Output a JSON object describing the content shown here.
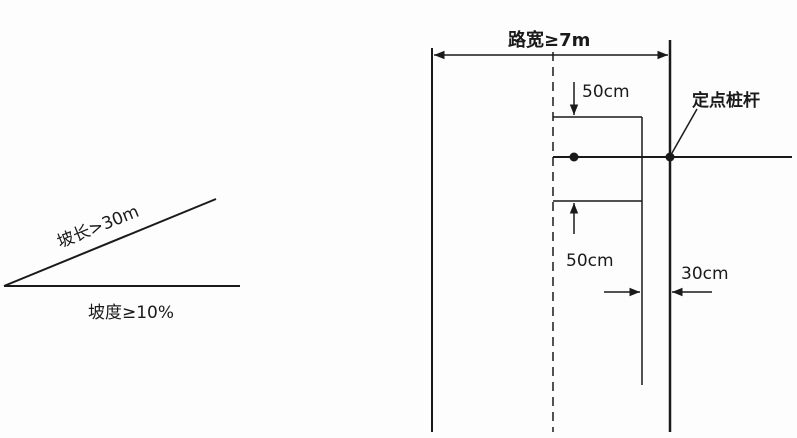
{
  "slope_figure": {
    "slope_length_label": "坡长>30m",
    "slope_grade_label": "坡度≥10%"
  },
  "road_figure": {
    "road_width_label": "路宽≥7m",
    "top_offset_label": "50cm",
    "bottom_offset_label": "50cm",
    "right_offset_label": "30cm",
    "stake_label": "定点桩杆"
  },
  "colors": {
    "ink": "#1a1a1a",
    "background": "#fdfdfd"
  }
}
